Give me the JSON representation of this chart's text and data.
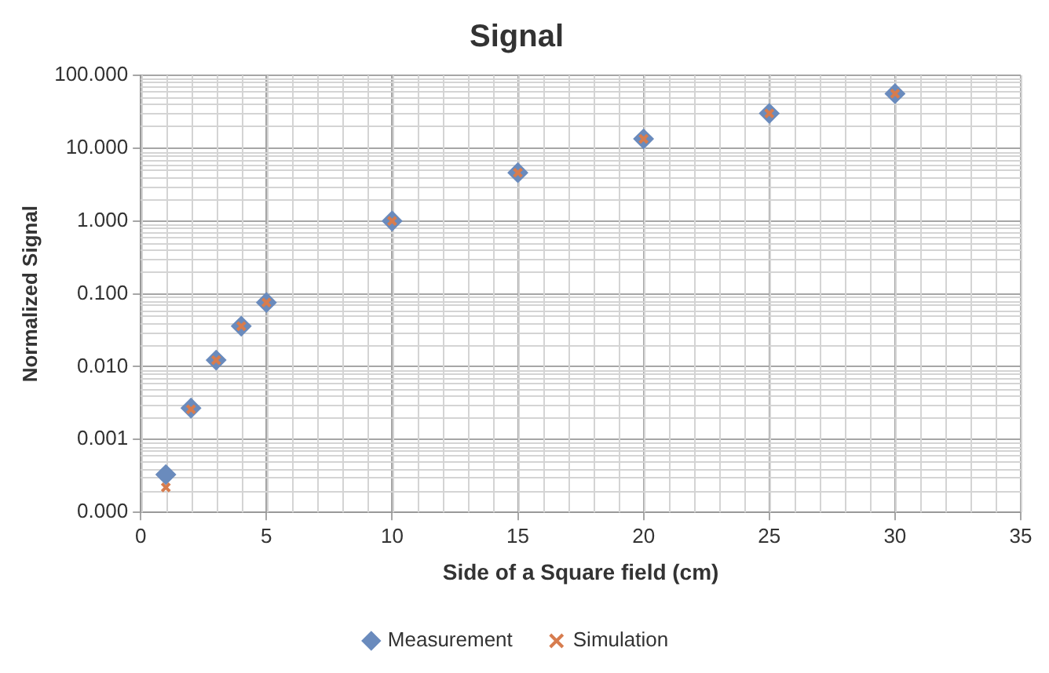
{
  "chart_data": {
    "type": "scatter",
    "title": "Signal",
    "xlabel": "Side of a Square field (cm)",
    "ylabel": "Normalized Signal",
    "x": [
      1,
      2,
      3,
      4,
      5,
      10,
      15,
      20,
      25,
      30
    ],
    "series": [
      {
        "name": "Measurement",
        "color": "#6a8bbd",
        "marker": "diamond",
        "values": [
          0.00033,
          0.0027,
          0.0123,
          0.036,
          0.076,
          1.0,
          4.6,
          13.4,
          30,
          56
        ]
      },
      {
        "name": "Simulation",
        "color": "#d77c4e",
        "marker": "cross",
        "values": [
          0.00022,
          0.0026,
          0.0123,
          0.036,
          0.076,
          1.0,
          4.6,
          13.4,
          30,
          56
        ]
      }
    ],
    "log": "y",
    "grid": true,
    "legend": "bottom",
    "xlim": [
      0,
      35
    ],
    "xticks": [
      0,
      5,
      10,
      15,
      20,
      25,
      30,
      35
    ],
    "ylim": [
      0.0001,
      100
    ],
    "yticks": [
      {
        "value": 0.0001,
        "label": "0.000"
      },
      {
        "value": 0.001,
        "label": "0.001"
      },
      {
        "value": 0.01,
        "label": "0.010"
      },
      {
        "value": 0.1,
        "label": "0.100"
      },
      {
        "value": 1,
        "label": "1.000"
      },
      {
        "value": 10,
        "label": "10.000"
      },
      {
        "value": 100,
        "label": "100.000"
      }
    ]
  }
}
